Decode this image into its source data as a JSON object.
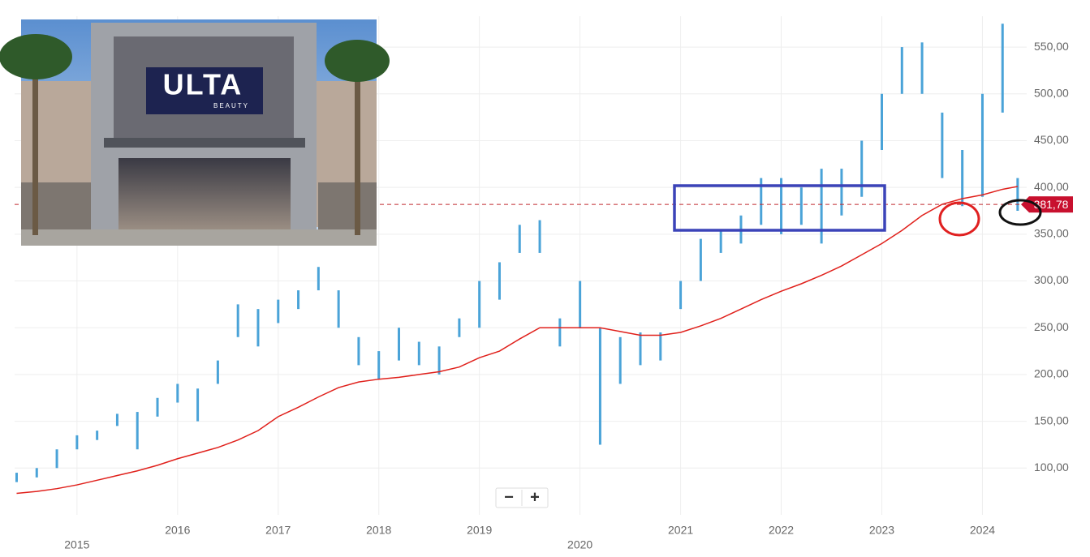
{
  "chart_data": {
    "type": "ohlc",
    "x": [
      2014.4,
      2014.6,
      2014.8,
      2015.0,
      2015.2,
      2015.4,
      2015.6,
      2015.8,
      2016.0,
      2016.2,
      2016.4,
      2016.6,
      2016.8,
      2017.0,
      2017.2,
      2017.4,
      2017.6,
      2017.8,
      2018.0,
      2018.2,
      2018.4,
      2018.6,
      2018.8,
      2019.0,
      2019.2,
      2019.4,
      2019.6,
      2019.8,
      2020.0,
      2020.2,
      2020.4,
      2020.6,
      2020.8,
      2021.0,
      2021.2,
      2021.4,
      2021.6,
      2021.8,
      2022.0,
      2022.2,
      2022.4,
      2022.6,
      2022.8,
      2023.0,
      2023.2,
      2023.4,
      2023.6,
      2023.8,
      2024.0,
      2024.2,
      2024.35
    ],
    "price": {
      "color": "#4aa3d8",
      "high": [
        95,
        100,
        120,
        135,
        140,
        158,
        160,
        175,
        190,
        185,
        215,
        275,
        270,
        280,
        290,
        315,
        290,
        240,
        225,
        250,
        235,
        230,
        260,
        300,
        320,
        360,
        365,
        260,
        300,
        250,
        240,
        245,
        245,
        300,
        345,
        355,
        370,
        410,
        410,
        400,
        420,
        420,
        450,
        500,
        550,
        555,
        480,
        440,
        500,
        575,
        410
      ],
      "low": [
        85,
        90,
        100,
        120,
        130,
        145,
        120,
        155,
        170,
        150,
        190,
        240,
        230,
        255,
        270,
        290,
        250,
        210,
        195,
        215,
        210,
        200,
        240,
        250,
        280,
        330,
        330,
        230,
        250,
        125,
        190,
        210,
        215,
        270,
        300,
        330,
        340,
        360,
        350,
        360,
        340,
        370,
        390,
        440,
        500,
        500,
        410,
        380,
        390,
        480,
        375
      ]
    },
    "moving_average": {
      "color": "#e0201b",
      "values": [
        73,
        75,
        78,
        82,
        87,
        92,
        97,
        103,
        110,
        116,
        122,
        130,
        140,
        155,
        165,
        176,
        186,
        192,
        195,
        197,
        200,
        203,
        208,
        218,
        225,
        238,
        250,
        250,
        250,
        250,
        246,
        242,
        242,
        245,
        252,
        260,
        270,
        280,
        289,
        297,
        306,
        316,
        328,
        340,
        354,
        370,
        382,
        388,
        392,
        398,
        401
      ]
    },
    "last_price": {
      "value": 381.78,
      "label": "381,78"
    },
    "xlim": [
      2014.38,
      2024.44
    ],
    "xticks": [
      2015,
      2016,
      2017,
      2018,
      2019,
      2020,
      2021,
      2022,
      2023,
      2024
    ],
    "ylim": [
      50,
      583
    ],
    "yticks": [
      {
        "value": 100,
        "label": "100,00"
      },
      {
        "value": 150,
        "label": "150,00"
      },
      {
        "value": 200,
        "label": "200,00"
      },
      {
        "value": 250,
        "label": "250,00"
      },
      {
        "value": 300,
        "label": "300,00"
      },
      {
        "value": 350,
        "label": "350,00"
      },
      {
        "value": 400,
        "label": "400,00"
      },
      {
        "value": 450,
        "label": "450,00"
      },
      {
        "value": 500,
        "label": "500,00"
      },
      {
        "value": 550,
        "label": "550,00"
      }
    ],
    "grid": true
  },
  "photo": {
    "sign": "ULTA",
    "subsign": "BEAUTY"
  },
  "controls": [
    "−",
    "+"
  ]
}
